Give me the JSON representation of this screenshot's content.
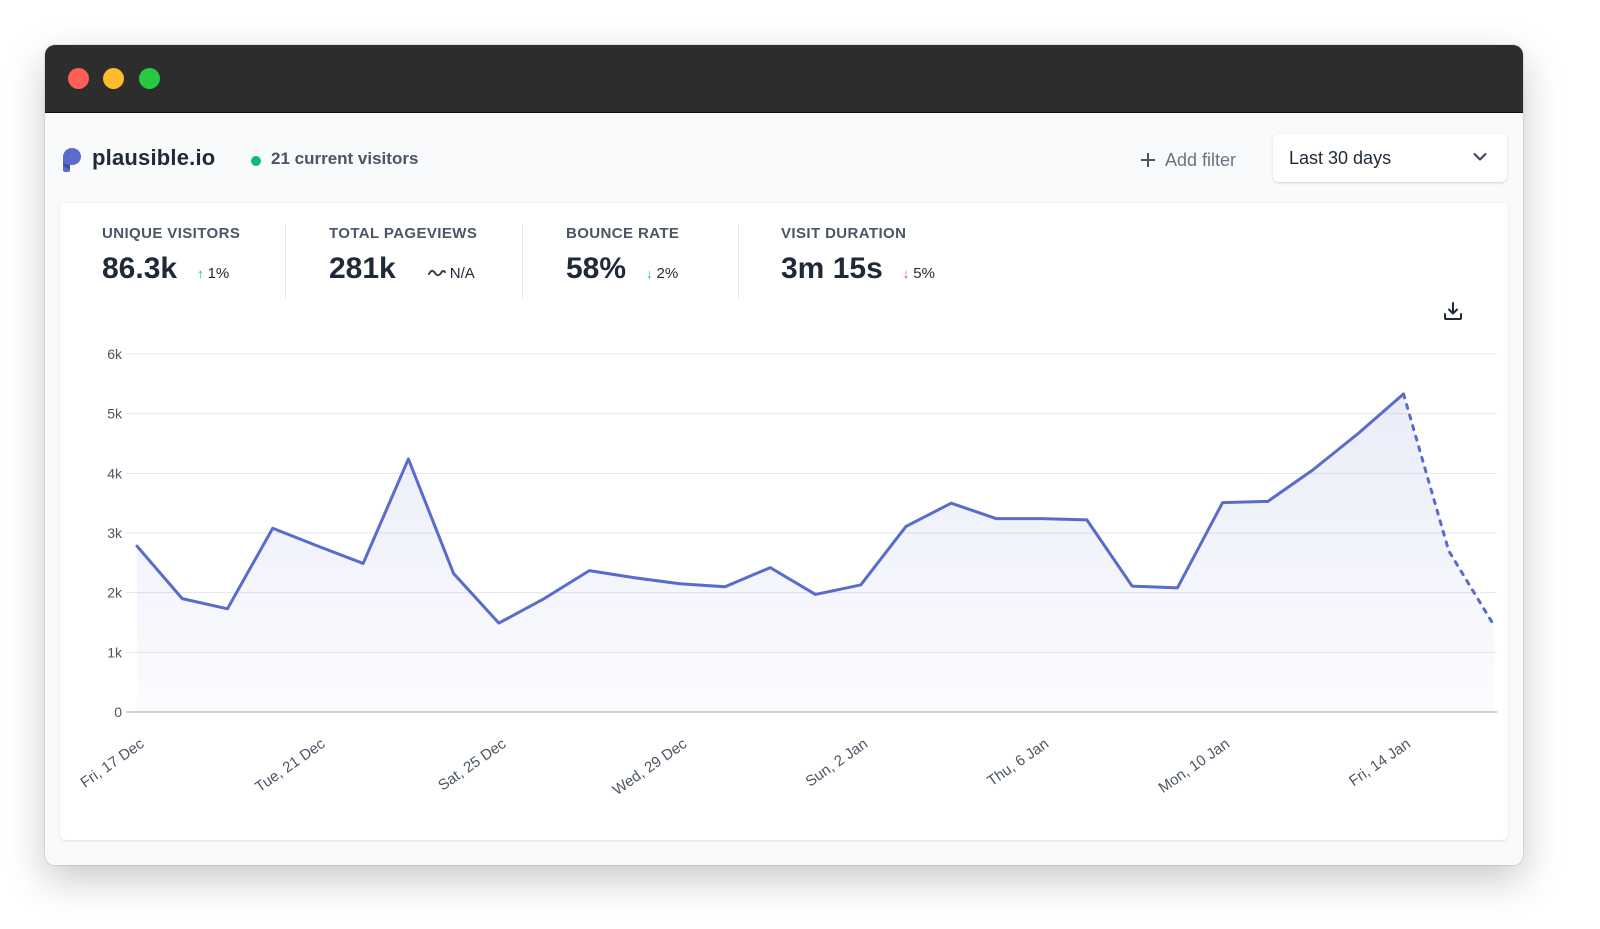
{
  "site": {
    "name": "plausible.io",
    "current_visitors": "21 current visitors"
  },
  "toolbar": {
    "add_filter_label": "Add filter",
    "period_label": "Last 30 days"
  },
  "colors": {
    "accent": "#5a6bc9",
    "live": "#10b981",
    "increase": "#10b981",
    "decrease": "#ef4444"
  },
  "stats": [
    {
      "label": "UNIQUE VISITORS",
      "value": "86.3k",
      "change": "1%",
      "direction": "up",
      "good": true
    },
    {
      "label": "TOTAL PAGEVIEWS",
      "value": "281k",
      "change": "N/A",
      "direction": "none",
      "good": true
    },
    {
      "label": "BOUNCE RATE",
      "value": "58%",
      "change": "2%",
      "direction": "down",
      "good": true
    },
    {
      "label": "VISIT DURATION",
      "value": "3m 15s",
      "change": "5%",
      "direction": "down",
      "good": false
    }
  ],
  "chart_data": {
    "type": "line",
    "series_name": "",
    "ylim": [
      0,
      6000
    ],
    "y_ticks": [
      "0",
      "1k",
      "2k",
      "3k",
      "4k",
      "5k",
      "6k"
    ],
    "x_tick_labels": [
      "Fri, 17 Dec",
      "Tue, 21 Dec",
      "Sat, 25 Dec",
      "Wed, 29 Dec",
      "Sun, 2 Jan",
      "Thu, 6 Jan",
      "Mon, 10 Jan",
      "Fri, 14 Jan"
    ],
    "x": [
      "17 Dec",
      "18 Dec",
      "19 Dec",
      "20 Dec",
      "21 Dec",
      "22 Dec",
      "23 Dec",
      "24 Dec",
      "25 Dec",
      "26 Dec",
      "27 Dec",
      "28 Dec",
      "29 Dec",
      "30 Dec",
      "31 Dec",
      "1 Jan",
      "2 Jan",
      "3 Jan",
      "4 Jan",
      "5 Jan",
      "6 Jan",
      "7 Jan",
      "8 Jan",
      "9 Jan",
      "10 Jan",
      "11 Jan",
      "12 Jan",
      "13 Jan",
      "14 Jan",
      "15 Jan",
      "16 Jan"
    ],
    "values": [
      2780,
      1900,
      1730,
      3080,
      2780,
      2490,
      4240,
      2320,
      1490,
      1900,
      2370,
      2250,
      2150,
      2100,
      2420,
      1970,
      2130,
      3110,
      3500,
      3240,
      3240,
      3220,
      2110,
      2080,
      3510,
      3530,
      4060,
      4670,
      5330,
      2700,
      1450
    ],
    "incomplete_from_index": 29,
    "grid": true,
    "area_fill": true
  }
}
